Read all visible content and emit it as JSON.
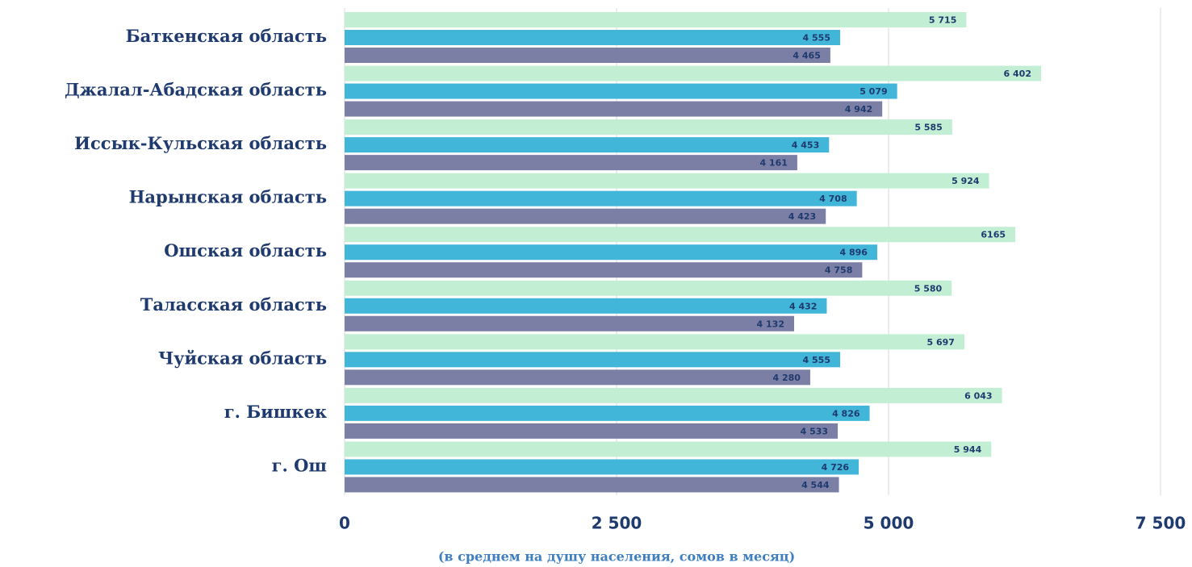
{
  "chart_data": {
    "type": "barh",
    "xlabel": "(в среднем на душу населения, сомов в месяц)",
    "categories": [
      "Баткенская область",
      "Джалал-Абадская область",
      "Иссык-Кульская область",
      "Нарынская область",
      "Ошская область",
      "Таласская область",
      "Чуйская область",
      "г. Бишкек",
      "г. Ош"
    ],
    "series": [
      {
        "color": "#c2efd4",
        "values": [
          5715,
          6402,
          5585,
          5924,
          6165,
          5580,
          5697,
          6043,
          5944
        ],
        "value_labels": [
          "5 715",
          "6 402",
          "5 585",
          "5 924",
          "6165",
          "5 580",
          "5 697",
          "6 043",
          "5 944"
        ]
      },
      {
        "color": "#41b6d9",
        "values": [
          4555,
          5079,
          4453,
          4708,
          4896,
          4432,
          4555,
          4826,
          4726
        ],
        "value_labels": [
          "4 555",
          "5 079",
          "4 453",
          "4 708",
          "4 896",
          "4 432",
          "4 555",
          "4 826",
          "4 726"
        ]
      },
      {
        "color": "#7b7fa6",
        "values": [
          4465,
          4942,
          4161,
          4423,
          4758,
          4132,
          4280,
          4533,
          4544
        ],
        "value_labels": [
          "4 465",
          "4 942",
          "4 161",
          "4 423",
          "4 758",
          "4 132",
          "4 280",
          "4 533",
          "4 544"
        ]
      }
    ],
    "xlim": [
      0,
      7500
    ],
    "xticks": [
      0,
      {
        "value": 2500,
        "label": "2 500"
      },
      {
        "value": 5000,
        "label": "5 000"
      },
      {
        "value": 7500,
        "label": "7 500"
      }
    ],
    "grid": true
  }
}
